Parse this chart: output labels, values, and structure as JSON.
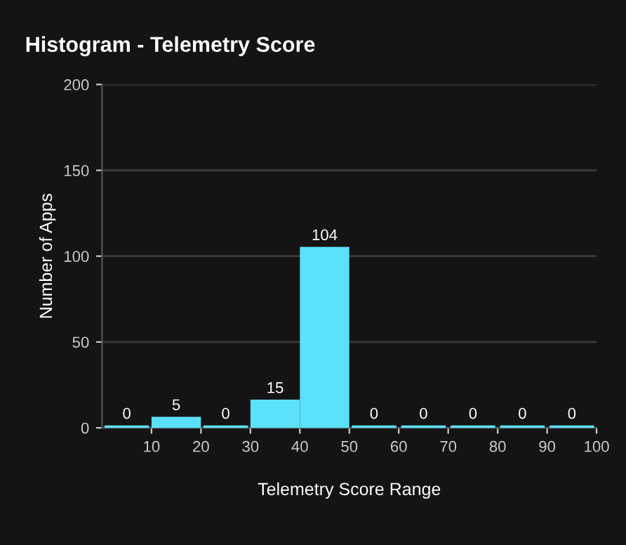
{
  "chart_data": {
    "type": "histogram",
    "title": "Histogram - Telemetry Score",
    "xlabel": "Telemetry Score Range",
    "ylabel": "Number of Apps",
    "bins": [
      0,
      10,
      20,
      30,
      40,
      50,
      60,
      70,
      80,
      90,
      100
    ],
    "values": [
      0,
      5,
      0,
      15,
      104,
      0,
      0,
      0,
      0,
      0
    ],
    "color": "#5ce1fa",
    "xlim": [
      0,
      100
    ],
    "xticks": [
      10,
      20,
      30,
      40,
      50,
      60,
      70,
      80,
      90,
      100
    ],
    "ylim": [
      0,
      200
    ],
    "yticks": [
      0,
      50,
      100,
      150,
      200
    ],
    "grid": "y",
    "data_labels": true
  }
}
